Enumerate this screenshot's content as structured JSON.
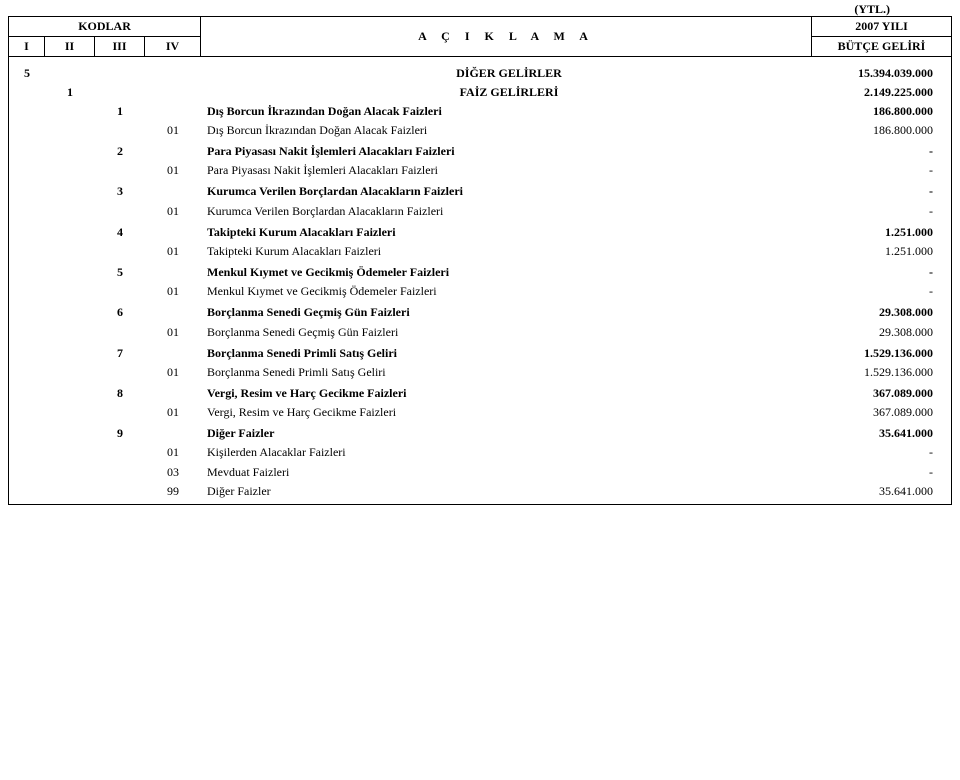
{
  "currency_label": "(YTL.)",
  "header": {
    "kodlar": "KODLAR",
    "year": "2007 YILI",
    "aciklama": "A Ç I K L A M A",
    "butce": "BÜTÇE GELİRİ",
    "cols": {
      "I": "I",
      "II": "II",
      "III": "III",
      "IV": "IV"
    }
  },
  "rows": [
    {
      "lvl": 1,
      "c1": "5",
      "desc": "DİĞER GELİRLER",
      "val": "15.394.039.000",
      "bold": true
    },
    {
      "lvl": 2,
      "c2": "1",
      "desc": "FAİZ GELİRLERİ",
      "val": "2.149.225.000",
      "bold": true
    },
    {
      "lvl": 3,
      "c3": "1",
      "desc": "Dış Borcun İkrazından Doğan Alacak Faizleri",
      "val": "186.800.000",
      "bold": true
    },
    {
      "lvl": 4,
      "c4": "01",
      "desc": "Dış Borcun İkrazından Doğan Alacak Faizleri",
      "val": "186.800.000",
      "bold": false
    },
    {
      "lvl": 3,
      "c3": "2",
      "desc": "Para Piyasası Nakit İşlemleri Alacakları Faizleri",
      "val": "-",
      "bold": true
    },
    {
      "lvl": 4,
      "c4": "01",
      "desc": "Para Piyasası Nakit İşlemleri Alacakları Faizleri",
      "val": "-",
      "bold": false
    },
    {
      "lvl": 3,
      "c3": "3",
      "desc": "Kurumca Verilen Borçlardan Alacakların Faizleri",
      "val": "-",
      "bold": true
    },
    {
      "lvl": 4,
      "c4": "01",
      "desc": "Kurumca Verilen Borçlardan Alacakların Faizleri",
      "val": "-",
      "bold": false
    },
    {
      "lvl": 3,
      "c3": "4",
      "desc": "Takipteki Kurum Alacakları Faizleri",
      "val": "1.251.000",
      "bold": true
    },
    {
      "lvl": 4,
      "c4": "01",
      "desc": "Takipteki Kurum Alacakları Faizleri",
      "val": "1.251.000",
      "bold": false
    },
    {
      "lvl": 3,
      "c3": "5",
      "desc": "Menkul Kıymet ve Gecikmiş Ödemeler Faizleri",
      "val": "-",
      "bold": true
    },
    {
      "lvl": 4,
      "c4": "01",
      "desc": "Menkul Kıymet ve Gecikmiş Ödemeler Faizleri",
      "val": "-",
      "bold": false
    },
    {
      "lvl": 3,
      "c3": "6",
      "desc": "Borçlanma Senedi Geçmiş Gün Faizleri",
      "val": "29.308.000",
      "bold": true
    },
    {
      "lvl": 4,
      "c4": "01",
      "desc": "Borçlanma Senedi Geçmiş Gün Faizleri",
      "val": "29.308.000",
      "bold": false
    },
    {
      "lvl": 3,
      "c3": "7",
      "desc": "Borçlanma Senedi Primli Satış Geliri",
      "val": "1.529.136.000",
      "bold": true
    },
    {
      "lvl": 4,
      "c4": "01",
      "desc": "Borçlanma Senedi Primli Satış Geliri",
      "val": "1.529.136.000",
      "bold": false
    },
    {
      "lvl": 3,
      "c3": "8",
      "desc": "Vergi, Resim ve Harç Gecikme Faizleri",
      "val": "367.089.000",
      "bold": true
    },
    {
      "lvl": 4,
      "c4": "01",
      "desc": "Vergi, Resim ve Harç Gecikme Faizleri",
      "val": "367.089.000",
      "bold": false
    },
    {
      "lvl": 3,
      "c3": "9",
      "desc": "Diğer Faizler",
      "val": "35.641.000",
      "bold": true
    },
    {
      "lvl": 4,
      "c4": "01",
      "desc": "Kişilerden Alacaklar Faizleri",
      "val": "-",
      "bold": false
    },
    {
      "lvl": 4,
      "c4": "03",
      "desc": "Mevduat Faizleri",
      "val": "-",
      "bold": false
    },
    {
      "lvl": 4,
      "c4": "99",
      "desc": "Diğer Faizler",
      "val": "35.641.000",
      "bold": false
    }
  ]
}
